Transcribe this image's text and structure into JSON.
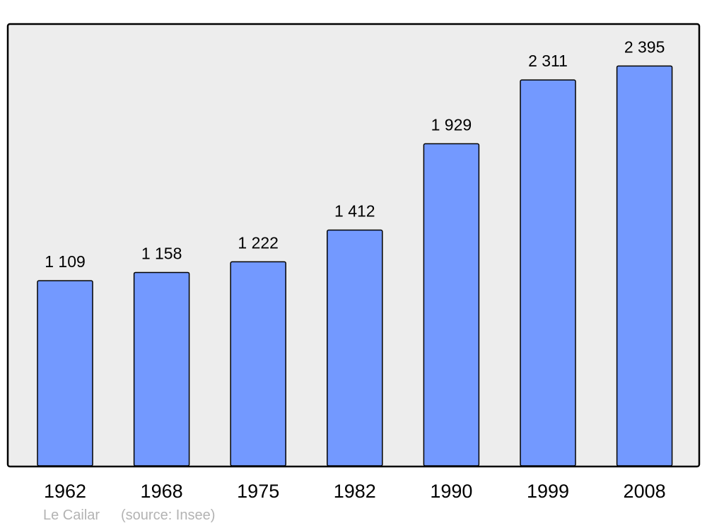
{
  "chart_data": {
    "type": "bar",
    "title": "",
    "xlabel": "",
    "ylabel": "",
    "categories": [
      "1962",
      "1968",
      "1975",
      "1982",
      "1990",
      "1999",
      "2008"
    ],
    "values": [
      1109,
      1158,
      1222,
      1412,
      1929,
      2311,
      2395
    ],
    "data_labels": [
      "1 109",
      "1 158",
      "1 222",
      "1 412",
      "1 929",
      "2 311",
      "2 395"
    ],
    "ylim": [
      0,
      2642
    ],
    "grid": false,
    "legend": "none",
    "colors": {
      "bar": "#7399ff",
      "background": "#ededed",
      "border": "#000000",
      "footer_text": "#b3b3b3"
    }
  },
  "footer": {
    "place": "Le Cailar",
    "source": "(source: Insee)"
  }
}
